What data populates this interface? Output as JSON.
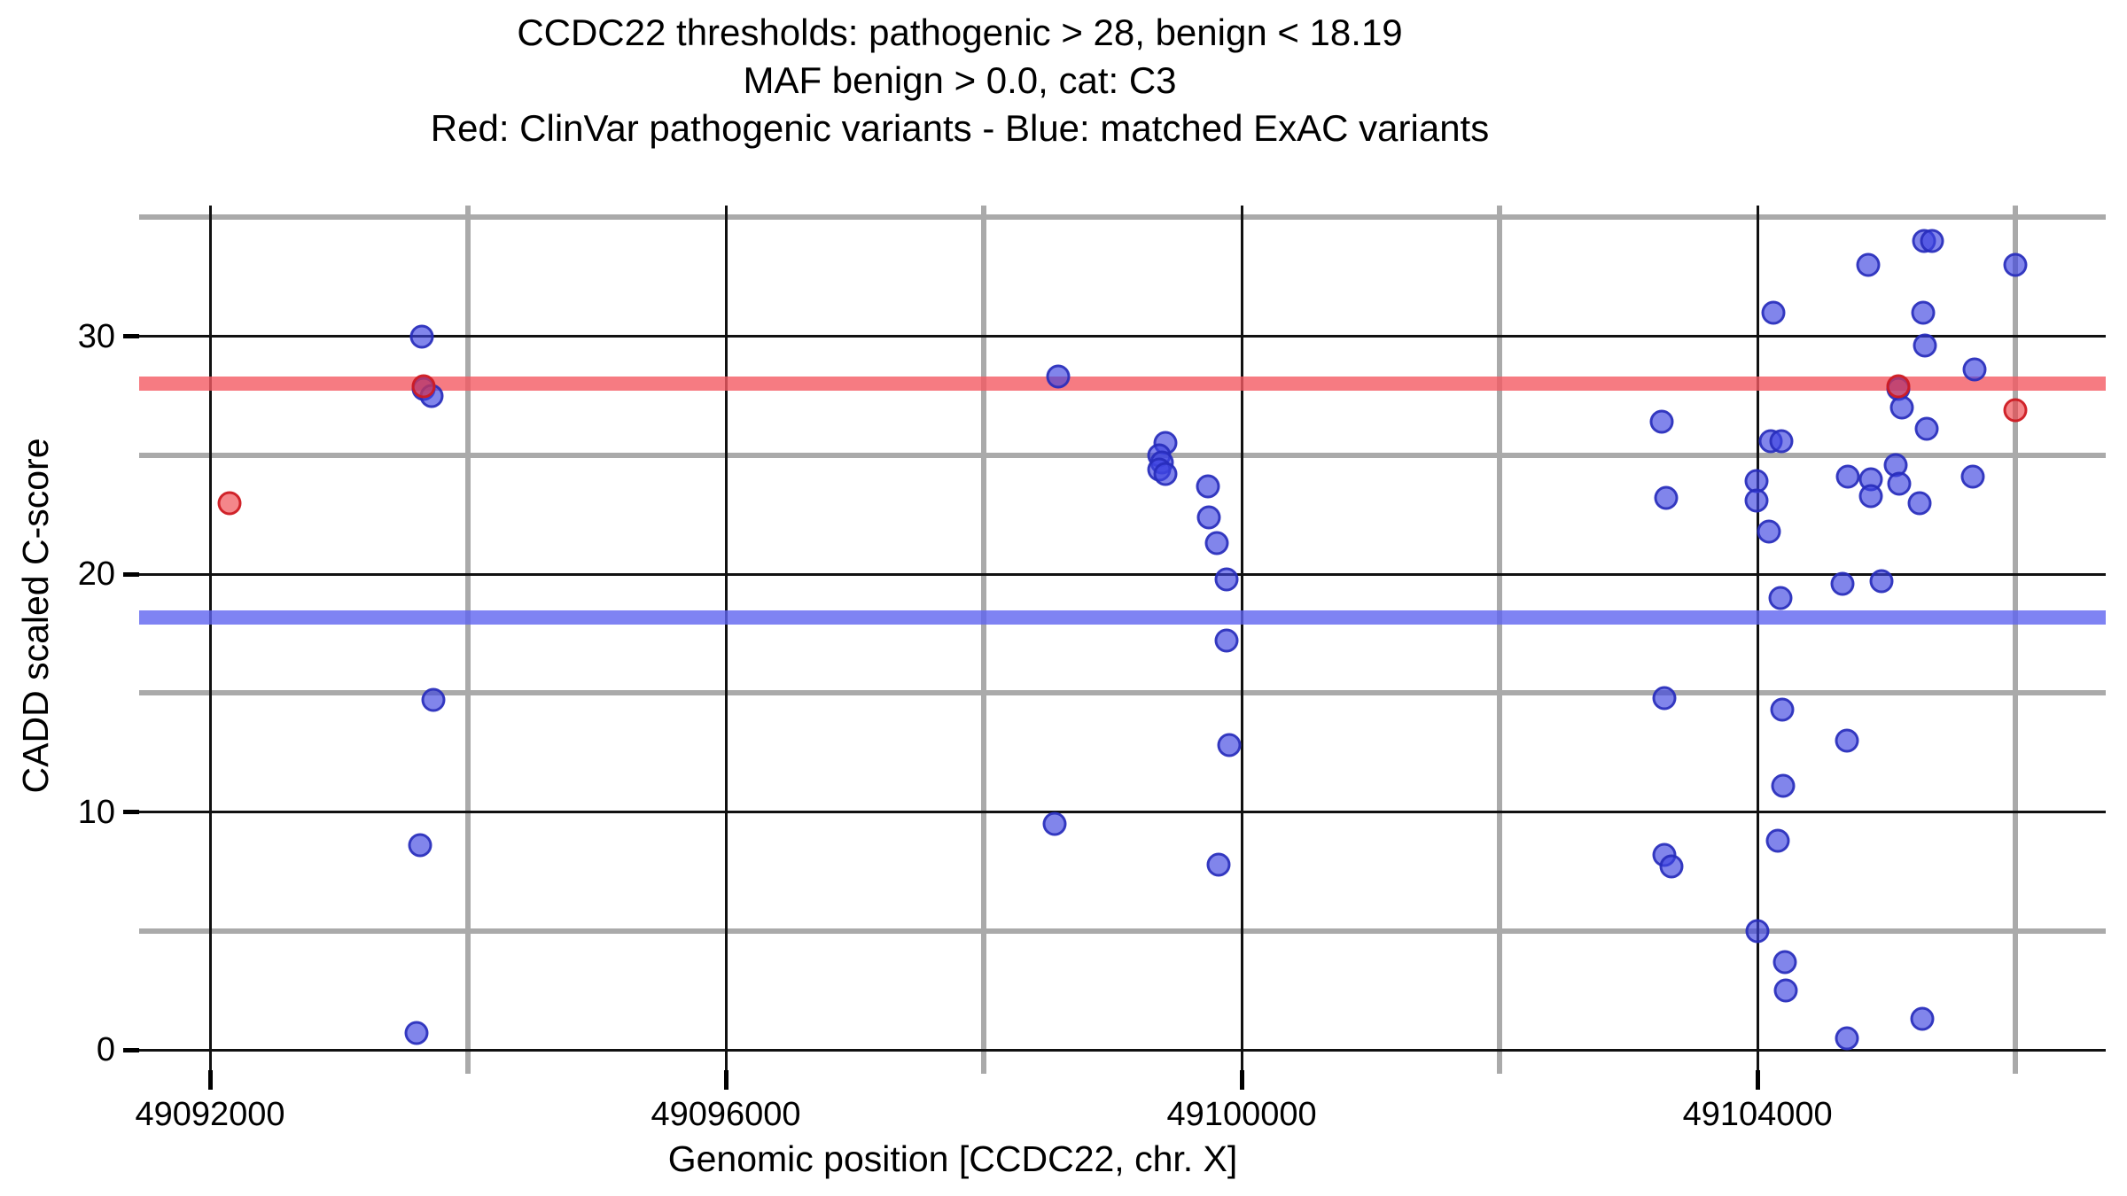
{
  "chart_data": {
    "type": "scatter",
    "title_lines": [
      "CCDC22 thresholds: pathogenic > 28, benign < 18.19",
      "MAF benign > 0.0, cat: C3",
      "Red: ClinVar pathogenic variants - Blue: matched ExAC variants"
    ],
    "xlabel": "Genomic position [CCDC22, chr. X]",
    "ylabel": "CADD scaled C-score",
    "xlim": [
      49091450,
      49106700
    ],
    "ylim": [
      -1,
      35.5
    ],
    "legend_position": "none",
    "grid": {
      "major_color": "#111111",
      "minor_color": "#aaaaaa",
      "major_width": 3,
      "minor_width": 6
    },
    "x_major_ticks": [
      {
        "value": 49092000,
        "label": "49092000"
      },
      {
        "value": 49096000,
        "label": "49096000"
      },
      {
        "value": 49100000,
        "label": "49100000"
      },
      {
        "value": 49104000,
        "label": "49104000"
      }
    ],
    "x_minor_gridlines": [
      49094000,
      49098000,
      49102000,
      49106000
    ],
    "y_major_ticks": [
      {
        "value": 0,
        "label": "0"
      },
      {
        "value": 10,
        "label": "10"
      },
      {
        "value": 20,
        "label": "20"
      },
      {
        "value": 30,
        "label": "30"
      }
    ],
    "y_minor_gridlines": [
      5,
      15,
      25,
      35
    ],
    "hlines": [
      {
        "name": "pathogenic-threshold",
        "y": 28,
        "color": "rgba(244,90,99,0.8)"
      },
      {
        "name": "benign-threshold",
        "y": 18.19,
        "color": "rgba(95,100,240,0.8)"
      }
    ],
    "series": [
      {
        "name": "ClinVar pathogenic variants",
        "color": "#e23d43",
        "fill": "rgba(238,60,66,0.62)",
        "stroke": "rgba(205,25,32,0.9)",
        "points": [
          [
            49092150,
            23.0
          ],
          [
            49093655,
            27.9
          ],
          [
            49105090,
            27.9
          ],
          [
            49106000,
            26.9
          ]
        ]
      },
      {
        "name": "matched ExAC variants",
        "color": "#3a3fde",
        "fill": "rgba(62,67,224,0.65)",
        "stroke": "rgba(38,43,185,0.85)",
        "points": [
          [
            49093640,
            30.0
          ],
          [
            49093655,
            27.8
          ],
          [
            49093720,
            27.5
          ],
          [
            49093730,
            14.7
          ],
          [
            49093630,
            8.6
          ],
          [
            49093600,
            0.7
          ],
          [
            49098580,
            28.3
          ],
          [
            49098550,
            9.5
          ],
          [
            49099407,
            25.5
          ],
          [
            49099360,
            25.0
          ],
          [
            49099380,
            24.7
          ],
          [
            49099360,
            24.4
          ],
          [
            49099405,
            24.2
          ],
          [
            49099740,
            23.7
          ],
          [
            49099745,
            22.4
          ],
          [
            49099805,
            21.3
          ],
          [
            49099885,
            19.8
          ],
          [
            49099885,
            17.2
          ],
          [
            49099900,
            12.8
          ],
          [
            49099820,
            7.8
          ],
          [
            49105290,
            34.0
          ],
          [
            49105355,
            34.0
          ],
          [
            49104860,
            33.0
          ],
          [
            49106000,
            33.0
          ],
          [
            49104120,
            31.0
          ],
          [
            49105285,
            31.0
          ],
          [
            49105295,
            29.6
          ],
          [
            49105685,
            28.6
          ],
          [
            49105090,
            27.8
          ],
          [
            49105120,
            27.0
          ],
          [
            49105310,
            26.1
          ],
          [
            49103260,
            26.4
          ],
          [
            49103290,
            23.2
          ],
          [
            49104100,
            25.6
          ],
          [
            49104185,
            25.6
          ],
          [
            49103990,
            23.9
          ],
          [
            49103990,
            23.1
          ],
          [
            49104090,
            21.8
          ],
          [
            49104700,
            24.1
          ],
          [
            49104880,
            24.0
          ],
          [
            49104880,
            23.3
          ],
          [
            49105070,
            24.6
          ],
          [
            49105100,
            23.8
          ],
          [
            49105260,
            23.0
          ],
          [
            49105670,
            24.1
          ],
          [
            49104660,
            19.6
          ],
          [
            49104960,
            19.7
          ],
          [
            49104180,
            19.0
          ],
          [
            49103280,
            14.8
          ],
          [
            49104190,
            14.3
          ],
          [
            49104690,
            13.0
          ],
          [
            49104200,
            11.1
          ],
          [
            49104160,
            8.8
          ],
          [
            49103280,
            8.2
          ],
          [
            49103330,
            7.7
          ],
          [
            49104000,
            5.0
          ],
          [
            49104210,
            3.7
          ],
          [
            49104220,
            2.5
          ],
          [
            49105280,
            1.3
          ],
          [
            49104690,
            0.5
          ]
        ]
      }
    ]
  }
}
